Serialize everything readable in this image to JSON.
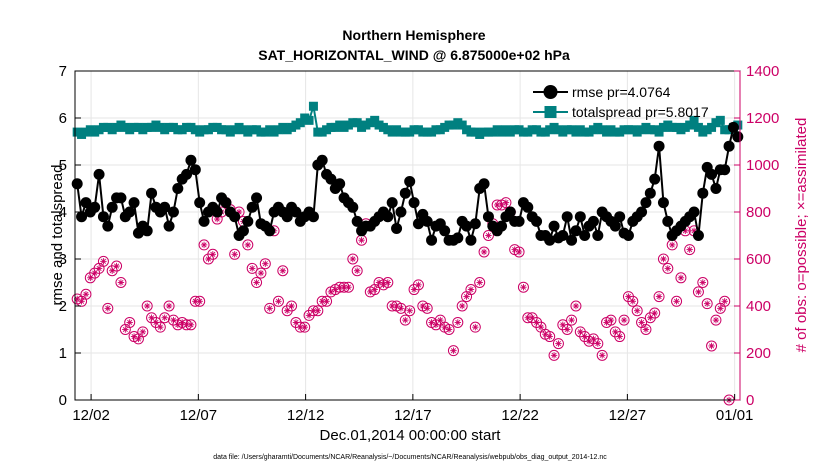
{
  "chart_data": {
    "type": "line",
    "title_line1": "Northern Hemisphere",
    "title_line2": "SAT_HORIZONTAL_WIND @ 6.875000e+02 hPa",
    "xlabel": "Dec.01,2014 00:00:00 start",
    "ylabel_left": "rmse and totalspread",
    "ylabel_right": "# of obs: o=possible; ×=assimilated",
    "x_tick_labels": [
      "12/02",
      "12/07",
      "12/12",
      "12/17",
      "12/22",
      "12/27",
      "01/01"
    ],
    "x_tick_days": [
      1,
      6,
      11,
      16,
      21,
      26,
      31
    ],
    "xlim_days": [
      0.25,
      31.25
    ],
    "ylim_left": [
      0,
      7
    ],
    "y_ticks_left": [
      "0",
      "1",
      "2",
      "3",
      "4",
      "5",
      "6",
      "7"
    ],
    "ylim_right": [
      0,
      1400
    ],
    "y_ticks_right": [
      "0",
      "200",
      "400",
      "600",
      "800",
      "1000",
      "1200",
      "1400"
    ],
    "footnote": "data file: /Users/gharamti/Documents/NCAR/Reanalysis/~/Documents/NCAR/Reanalysis/webpub/obs_diag_output_2014-12.nc",
    "colors": {
      "rmse": "#000000",
      "totalspread": "#008080",
      "obs": "#cc0066",
      "right_axis": "#cc0066",
      "gridline": "#e6e6e6"
    },
    "series": [
      {
        "name": "rmse",
        "legend": "rmse pr=4.0764",
        "axis": "left",
        "values": [
          4.6,
          3.9,
          4.2,
          4.0,
          4.1,
          4.8,
          3.9,
          3.7,
          4.1,
          4.3,
          4.3,
          3.9,
          4.0,
          4.2,
          3.55,
          3.7,
          3.6,
          4.4,
          4.1,
          4.0,
          4.1,
          3.7,
          4.0,
          4.5,
          4.7,
          4.8,
          5.1,
          4.9,
          4.2,
          3.8,
          4.0,
          4.1,
          4.0,
          4.3,
          4.2,
          4.0,
          3.9,
          3.5,
          3.6,
          3.8,
          4.1,
          4.3,
          3.75,
          3.7,
          3.6,
          4.0,
          4.1,
          4.0,
          3.9,
          4.1,
          4.0,
          3.8,
          3.9,
          4.0,
          3.9,
          5.0,
          5.1,
          4.8,
          4.7,
          4.5,
          4.6,
          4.3,
          4.2,
          4.1,
          3.8,
          3.6,
          3.7,
          3.7,
          3.8,
          3.9,
          4.0,
          3.9,
          4.2,
          3.65,
          4.0,
          4.4,
          4.65,
          4.2,
          3.75,
          3.95,
          3.8,
          3.4,
          3.7,
          3.75,
          3.6,
          3.4,
          3.4,
          3.45,
          3.8,
          3.7,
          3.4,
          3.75,
          4.5,
          4.6,
          3.9,
          3.7,
          3.6,
          3.7,
          3.9,
          4.0,
          3.8,
          3.8,
          4.2,
          4.1,
          3.9,
          3.8,
          3.5,
          3.5,
          3.4,
          3.7,
          3.45,
          3.5,
          3.9,
          3.4,
          3.6,
          3.9,
          3.5,
          3.7,
          3.8,
          3.5,
          4.0,
          3.9,
          3.8,
          3.7,
          3.9,
          3.55,
          3.5,
          3.8,
          3.9,
          4.0,
          4.2,
          4.4,
          4.7,
          5.4,
          4.2,
          3.8,
          3.5,
          3.6,
          3.7,
          3.8,
          3.9,
          4.0,
          3.5,
          4.4,
          4.95,
          4.8,
          4.5,
          4.9,
          4.9,
          5.4,
          5.8,
          5.6
        ],
        "marker": "filled-circle"
      },
      {
        "name": "totalspread",
        "legend": "totalspread pr=5.8017",
        "axis": "left",
        "values": [
          5.7,
          5.65,
          5.7,
          5.75,
          5.7,
          5.75,
          5.8,
          5.8,
          5.75,
          5.8,
          5.85,
          5.8,
          5.75,
          5.8,
          5.8,
          5.75,
          5.8,
          5.8,
          5.85,
          5.8,
          5.75,
          5.8,
          5.8,
          5.75,
          5.75,
          5.8,
          5.8,
          5.75,
          5.7,
          5.75,
          5.75,
          5.8,
          5.8,
          5.75,
          5.75,
          5.7,
          5.75,
          5.8,
          5.75,
          5.7,
          5.75,
          5.75,
          5.7,
          5.7,
          5.75,
          5.7,
          5.75,
          5.8,
          5.75,
          5.8,
          5.85,
          5.9,
          6.0,
          5.95,
          6.25,
          5.7,
          5.7,
          5.75,
          5.8,
          5.8,
          5.85,
          5.8,
          5.85,
          5.9,
          5.9,
          5.8,
          5.85,
          5.9,
          5.95,
          5.85,
          5.8,
          5.75,
          5.7,
          5.75,
          5.7,
          5.7,
          5.7,
          5.75,
          5.75,
          5.7,
          5.7,
          5.7,
          5.75,
          5.75,
          5.8,
          5.85,
          5.85,
          5.9,
          5.85,
          5.75,
          5.7,
          5.7,
          5.65,
          5.7,
          5.7,
          5.7,
          5.75,
          5.7,
          5.75,
          5.7,
          5.75,
          5.75,
          5.7,
          5.7,
          5.75,
          5.75,
          5.7,
          5.7,
          5.75,
          5.8,
          5.75,
          5.7,
          5.75,
          5.75,
          5.7,
          5.75,
          5.7,
          5.7,
          5.75,
          5.8,
          5.75,
          5.7,
          5.75,
          5.7,
          5.7,
          5.75,
          5.75,
          5.75,
          5.7,
          5.75,
          5.8,
          5.75,
          5.75,
          5.7,
          5.8,
          5.85,
          5.8,
          5.8,
          5.75,
          5.8,
          5.85,
          5.95,
          5.8,
          5.7,
          5.75,
          5.8,
          5.9,
          5.95,
          5.75,
          5.75,
          5.8,
          5.85
        ],
        "marker": "filled-square"
      },
      {
        "name": "# of obs",
        "axis": "right",
        "marker": "circle-with-asterisk",
        "values": [
          430,
          420,
          450,
          520,
          540,
          560,
          590,
          390,
          550,
          570,
          500,
          300,
          330,
          270,
          260,
          290,
          400,
          350,
          330,
          310,
          350,
          400,
          340,
          320,
          330,
          320,
          320,
          420,
          420,
          660,
          600,
          620,
          770,
          800,
          840,
          810,
          620,
          800,
          760,
          660,
          560,
          500,
          540,
          580,
          390,
          720,
          420,
          550,
          380,
          400,
          330,
          310,
          310,
          360,
          380,
          380,
          420,
          420,
          460,
          470,
          480,
          480,
          480,
          600,
          550,
          680,
          750,
          460,
          470,
          500,
          490,
          500,
          400,
          400,
          390,
          340,
          380,
          470,
          490,
          400,
          390,
          330,
          320,
          340,
          310,
          300,
          210,
          330,
          400,
          440,
          470,
          310,
          500,
          630,
          700,
          750,
          830,
          830,
          840,
          800,
          640,
          630,
          480,
          350,
          350,
          330,
          310,
          280,
          270,
          190,
          240,
          320,
          300,
          340,
          400,
          290,
          270,
          250,
          260,
          240,
          190,
          330,
          340,
          290,
          270,
          340,
          440,
          420,
          380,
          330,
          300,
          350,
          370,
          440,
          600,
          560,
          660,
          420,
          520,
          720,
          640,
          720,
          460,
          500,
          410,
          230,
          340,
          390,
          420,
          0
        ]
      }
    ]
  }
}
